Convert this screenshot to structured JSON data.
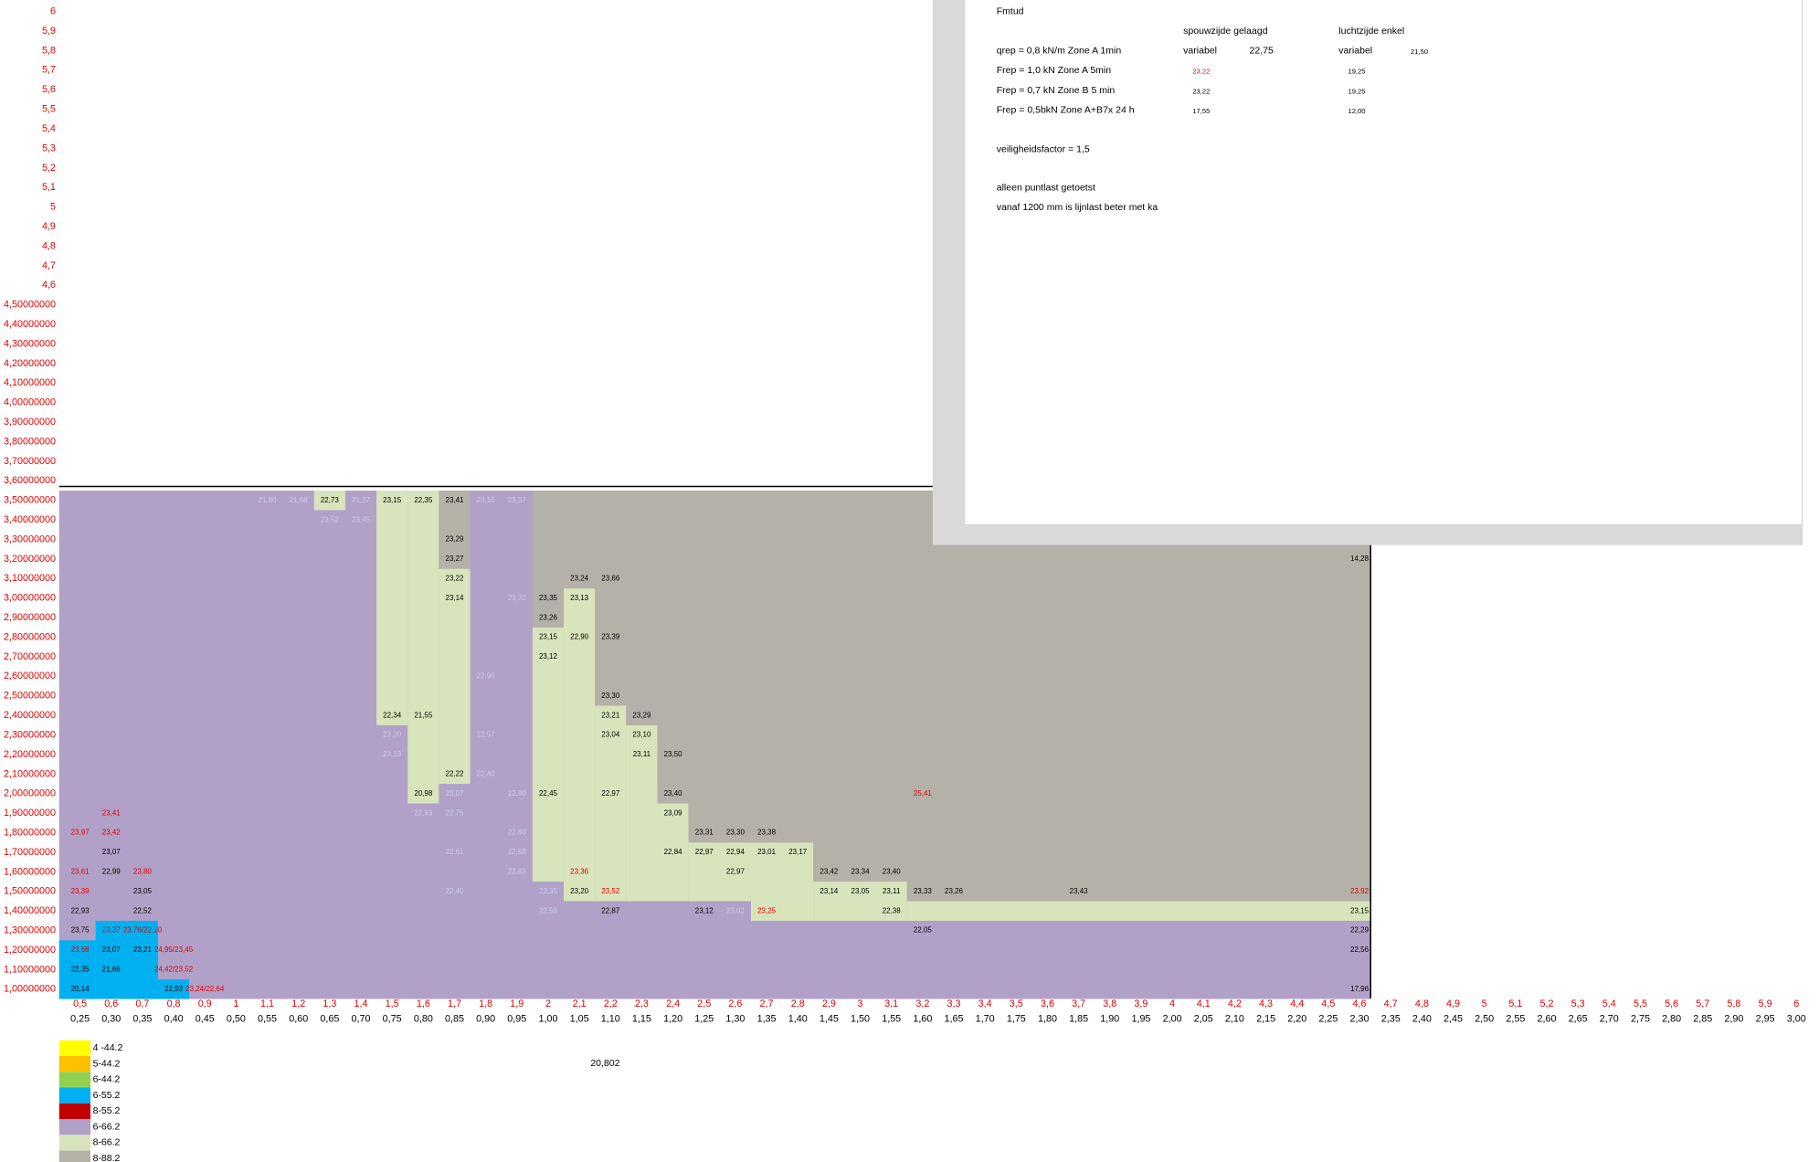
{
  "y_labels": [
    "6",
    "5,9",
    "5,8",
    "5,7",
    "5,6",
    "5,5",
    "5,4",
    "5,3",
    "5,2",
    "5,1",
    "5",
    "4,9",
    "4,8",
    "4,7",
    "4,6",
    "4,50000000",
    "4,40000000",
    "4,30000000",
    "4,20000000",
    "4,10000000",
    "4,00000000",
    "3,90000000",
    "3,80000000",
    "3,70000000",
    "3,60000000",
    "3,50000000",
    "3,40000000",
    "3,30000000",
    "3,20000000",
    "3,10000000",
    "3,00000000",
    "2,90000000",
    "2,80000000",
    "2,70000000",
    "2,60000000",
    "2,50000000",
    "2,40000000",
    "2,30000000",
    "2,20000000",
    "2,10000000",
    "2,00000000",
    "1,90000000",
    "1,80000000",
    "1,70000000",
    "1,60000000",
    "1,50000000",
    "1,40000000",
    "1,30000000",
    "1,20000000",
    "1,10000000",
    "1,00000000"
  ],
  "x_labels_top": [
    "0,5",
    "0,6",
    "0,7",
    "0,8",
    "0,9",
    "1",
    "1,1",
    "1,2",
    "1,3",
    "1,4",
    "1,5",
    "1,6",
    "1,7",
    "1,8",
    "1,9",
    "2",
    "2,1",
    "2,2",
    "2,3",
    "2,4",
    "2,5",
    "2,6",
    "2,7",
    "2,8",
    "2,9",
    "3",
    "3,1",
    "3,2",
    "3,3",
    "3,4",
    "3,5",
    "3,6",
    "3,7",
    "3,8",
    "3,9",
    "4",
    "4,1",
    "4,2",
    "4,3",
    "4,4",
    "4,5",
    "4,6",
    "4,7",
    "4,8",
    "4,9",
    "5",
    "5,1",
    "5,2",
    "5,3",
    "5,4",
    "5,5",
    "5,6",
    "5,7",
    "5,8",
    "5,9",
    "6"
  ],
  "x_labels_bottom": [
    "0,25",
    "0,30",
    "0,35",
    "0,40",
    "0,45",
    "0,50",
    "0,55",
    "0,60",
    "0,65",
    "0,70",
    "0,75",
    "0,80",
    "0,85",
    "0,90",
    "0,95",
    "1,00",
    "1,05",
    "1,10",
    "1,15",
    "1,20",
    "1,25",
    "1,30",
    "1,35",
    "1,40",
    "1,45",
    "1,50",
    "1,55",
    "1,60",
    "1,65",
    "1,70",
    "1,75",
    "1,80",
    "1,85",
    "1,90",
    "1,95",
    "2,00",
    "2,05",
    "2,10",
    "2,15",
    "2,20",
    "2,25",
    "2,30",
    "2,35",
    "2,40",
    "2,45",
    "2,50",
    "2,55",
    "2,60",
    "2,65",
    "2,70",
    "2,75",
    "2,80",
    "2,85",
    "2,90",
    "2,95",
    "3,00"
  ],
  "grid": {
    "cells": [
      {
        "x": 0.55,
        "y": 3.5,
        "text": "21,80",
        "tone": "light"
      },
      {
        "x": 0.6,
        "y": 3.5,
        "text": "21,68",
        "tone": "light"
      },
      {
        "x": 0.65,
        "y": 3.5,
        "text": "22,73",
        "tone": "black"
      },
      {
        "x": 0.7,
        "y": 3.5,
        "text": "21,37",
        "tone": "light"
      },
      {
        "x": 0.75,
        "y": 3.5,
        "text": "23,15",
        "tone": "black"
      },
      {
        "x": 0.8,
        "y": 3.5,
        "text": "22,35",
        "tone": "black"
      },
      {
        "x": 0.85,
        "y": 3.5,
        "text": "23,41",
        "tone": "black"
      },
      {
        "x": 0.9,
        "y": 3.5,
        "text": "23,16",
        "tone": "light"
      },
      {
        "x": 0.95,
        "y": 3.5,
        "text": "23,37",
        "tone": "light"
      },
      {
        "x": 0.65,
        "y": 3.4,
        "text": "23,52",
        "tone": "light"
      },
      {
        "x": 0.7,
        "y": 3.4,
        "text": "23,45",
        "tone": "light"
      },
      {
        "x": 0.85,
        "y": 3.3,
        "text": "23,29",
        "tone": "black"
      },
      {
        "x": 0.85,
        "y": 3.2,
        "text": "23,27",
        "tone": "black"
      },
      {
        "x": 2.3,
        "y": 3.2,
        "text": "14,28",
        "tone": "black"
      },
      {
        "x": 0.85,
        "y": 3.1,
        "text": "23,22",
        "tone": "black"
      },
      {
        "x": 1.05,
        "y": 3.1,
        "text": "23,24",
        "tone": "black"
      },
      {
        "x": 1.1,
        "y": 3.1,
        "text": "23,66",
        "tone": "black"
      },
      {
        "x": 0.85,
        "y": 3.0,
        "text": "23,14",
        "tone": "black"
      },
      {
        "x": 0.95,
        "y": 3.0,
        "text": "23,32",
        "tone": "light"
      },
      {
        "x": 1.0,
        "y": 3.0,
        "text": "23,35",
        "tone": "black"
      },
      {
        "x": 1.05,
        "y": 3.0,
        "text": "23,13",
        "tone": "black"
      },
      {
        "x": 1.0,
        "y": 2.9,
        "text": "23,26",
        "tone": "black"
      },
      {
        "x": 1.0,
        "y": 2.8,
        "text": "23,15",
        "tone": "black"
      },
      {
        "x": 1.05,
        "y": 2.8,
        "text": "22,90",
        "tone": "black"
      },
      {
        "x": 1.1,
        "y": 2.8,
        "text": "23,39",
        "tone": "black"
      },
      {
        "x": 1.0,
        "y": 2.7,
        "text": "23,12",
        "tone": "black"
      },
      {
        "x": 0.9,
        "y": 2.6,
        "text": "22,96",
        "tone": "light"
      },
      {
        "x": 1.1,
        "y": 2.5,
        "text": "23,30",
        "tone": "black"
      },
      {
        "x": 0.75,
        "y": 2.4,
        "text": "22,34",
        "tone": "black"
      },
      {
        "x": 0.8,
        "y": 2.4,
        "text": "21,55",
        "tone": "black"
      },
      {
        "x": 1.1,
        "y": 2.4,
        "text": "23,21",
        "tone": "black"
      },
      {
        "x": 1.15,
        "y": 2.4,
        "text": "23,29",
        "tone": "black"
      },
      {
        "x": 0.75,
        "y": 2.3,
        "text": "23,20",
        "tone": "light"
      },
      {
        "x": 0.9,
        "y": 2.3,
        "text": "22,57",
        "tone": "light"
      },
      {
        "x": 1.1,
        "y": 2.3,
        "text": "23,04",
        "tone": "black"
      },
      {
        "x": 1.15,
        "y": 2.3,
        "text": "23,10",
        "tone": "black"
      },
      {
        "x": 0.75,
        "y": 2.2,
        "text": "23,13",
        "tone": "light"
      },
      {
        "x": 1.15,
        "y": 2.2,
        "text": "23,11",
        "tone": "black"
      },
      {
        "x": 1.2,
        "y": 2.2,
        "text": "23,50",
        "tone": "black"
      },
      {
        "x": 0.85,
        "y": 2.1,
        "text": "22,22",
        "tone": "black"
      },
      {
        "x": 0.9,
        "y": 2.1,
        "text": "22,40",
        "tone": "light"
      },
      {
        "x": 0.8,
        "y": 2.0,
        "text": "20,98",
        "tone": "black"
      },
      {
        "x": 0.85,
        "y": 2.0,
        "text": "23,07",
        "tone": "light"
      },
      {
        "x": 0.95,
        "y": 2.0,
        "text": "22,90",
        "tone": "light"
      },
      {
        "x": 1.0,
        "y": 2.0,
        "text": "22,45",
        "tone": "black"
      },
      {
        "x": 1.1,
        "y": 2.0,
        "text": "22,97",
        "tone": "black"
      },
      {
        "x": 1.2,
        "y": 2.0,
        "text": "23,40",
        "tone": "black"
      },
      {
        "x": 1.6,
        "y": 2.0,
        "text": "25,41",
        "tone": "red"
      },
      {
        "x": 0.3,
        "y": 1.9,
        "text": "23,41",
        "tone": "red"
      },
      {
        "x": 0.8,
        "y": 1.9,
        "text": "22,93",
        "tone": "light"
      },
      {
        "x": 0.85,
        "y": 1.9,
        "text": "22,75",
        "tone": "light"
      },
      {
        "x": 1.2,
        "y": 1.9,
        "text": "23,09",
        "tone": "black"
      },
      {
        "x": 0.25,
        "y": 1.8,
        "text": "23,97",
        "tone": "red"
      },
      {
        "x": 0.3,
        "y": 1.8,
        "text": "23,42",
        "tone": "red"
      },
      {
        "x": 0.95,
        "y": 1.8,
        "text": "22,80",
        "tone": "light"
      },
      {
        "x": 1.25,
        "y": 1.8,
        "text": "23,31",
        "tone": "black"
      },
      {
        "x": 1.3,
        "y": 1.8,
        "text": "23,30",
        "tone": "black"
      },
      {
        "x": 1.35,
        "y": 1.8,
        "text": "23,38",
        "tone": "black"
      },
      {
        "x": 0.3,
        "y": 1.7,
        "text": "23,07",
        "tone": "black"
      },
      {
        "x": 0.85,
        "y": 1.7,
        "text": "22,61",
        "tone": "light"
      },
      {
        "x": 0.95,
        "y": 1.7,
        "text": "22,68",
        "tone": "light"
      },
      {
        "x": 1.2,
        "y": 1.7,
        "text": "22,84",
        "tone": "black"
      },
      {
        "x": 1.25,
        "y": 1.7,
        "text": "22,97",
        "tone": "black"
      },
      {
        "x": 1.3,
        "y": 1.7,
        "text": "22,94",
        "tone": "black"
      },
      {
        "x": 1.35,
        "y": 1.7,
        "text": "23,01",
        "tone": "black"
      },
      {
        "x": 1.4,
        "y": 1.7,
        "text": "23,17",
        "tone": "black"
      },
      {
        "x": 0.25,
        "y": 1.6,
        "text": "23,61",
        "tone": "red"
      },
      {
        "x": 0.3,
        "y": 1.6,
        "text": "22,99",
        "tone": "black"
      },
      {
        "x": 0.35,
        "y": 1.6,
        "text": "23,80",
        "tone": "red"
      },
      {
        "x": 0.95,
        "y": 1.6,
        "text": "22,83",
        "tone": "light"
      },
      {
        "x": 1.05,
        "y": 1.6,
        "text": "23,36",
        "tone": "red"
      },
      {
        "x": 1.3,
        "y": 1.6,
        "text": "22,97",
        "tone": "black"
      },
      {
        "x": 1.45,
        "y": 1.6,
        "text": "23,42",
        "tone": "black"
      },
      {
        "x": 1.5,
        "y": 1.6,
        "text": "23,34",
        "tone": "black"
      },
      {
        "x": 1.55,
        "y": 1.6,
        "text": "23,40",
        "tone": "black"
      },
      {
        "x": 0.25,
        "y": 1.5,
        "text": "23,39",
        "tone": "red"
      },
      {
        "x": 0.35,
        "y": 1.5,
        "text": "23,05",
        "tone": "black"
      },
      {
        "x": 0.85,
        "y": 1.5,
        "text": "22,40",
        "tone": "light"
      },
      {
        "x": 1.0,
        "y": 1.5,
        "text": "23,35",
        "tone": "light"
      },
      {
        "x": 1.05,
        "y": 1.5,
        "text": "23,20",
        "tone": "black"
      },
      {
        "x": 1.1,
        "y": 1.5,
        "text": "23,52",
        "tone": "red"
      },
      {
        "x": 1.45,
        "y": 1.5,
        "text": "23,14",
        "tone": "black"
      },
      {
        "x": 1.5,
        "y": 1.5,
        "text": "23,05",
        "tone": "black"
      },
      {
        "x": 1.55,
        "y": 1.5,
        "text": "23,11",
        "tone": "black"
      },
      {
        "x": 1.6,
        "y": 1.5,
        "text": "23,33",
        "tone": "black"
      },
      {
        "x": 1.65,
        "y": 1.5,
        "text": "23,26",
        "tone": "black"
      },
      {
        "x": 1.85,
        "y": 1.5,
        "text": "23,43",
        "tone": "black"
      },
      {
        "x": 2.3,
        "y": 1.5,
        "text": "23,92",
        "tone": "red"
      },
      {
        "x": 0.25,
        "y": 1.4,
        "text": "22,93",
        "tone": "black"
      },
      {
        "x": 0.35,
        "y": 1.4,
        "text": "22,52",
        "tone": "black"
      },
      {
        "x": 1.0,
        "y": 1.4,
        "text": "22,59",
        "tone": "light"
      },
      {
        "x": 1.1,
        "y": 1.4,
        "text": "22,87",
        "tone": "black"
      },
      {
        "x": 1.25,
        "y": 1.4,
        "text": "23,12",
        "tone": "black"
      },
      {
        "x": 1.3,
        "y": 1.4,
        "text": "23,02",
        "tone": "light"
      },
      {
        "x": 1.35,
        "y": 1.4,
        "text": "23,25",
        "tone": "red"
      },
      {
        "x": 1.55,
        "y": 1.4,
        "text": "22,38",
        "tone": "black"
      },
      {
        "x": 2.3,
        "y": 1.4,
        "text": "23,15",
        "tone": "black"
      },
      {
        "x": 0.25,
        "y": 1.3,
        "text": "23,75",
        "tone": "black"
      },
      {
        "x": 0.3,
        "y": 1.3,
        "text": "23,37",
        "tone": "red"
      },
      {
        "x": 0.35,
        "y": 1.3,
        "text": "23,76/22,10",
        "tone": "red"
      },
      {
        "x": 1.6,
        "y": 1.3,
        "text": "22,05",
        "tone": "black"
      },
      {
        "x": 2.3,
        "y": 1.3,
        "text": "22,29",
        "tone": "black"
      },
      {
        "x": 0.25,
        "y": 1.2,
        "text": "23,68",
        "tone": "red"
      },
      {
        "x": 0.3,
        "y": 1.2,
        "text": "23,07",
        "tone": "black"
      },
      {
        "x": 0.35,
        "y": 1.2,
        "text": "23,21",
        "tone": "black"
      },
      {
        "x": 0.4,
        "y": 1.2,
        "text": "24,95/23,45",
        "tone": "red"
      },
      {
        "x": 2.3,
        "y": 1.2,
        "text": "22,56",
        "tone": "black"
      },
      {
        "x": 0.25,
        "y": 1.1,
        "text": "22,35",
        "tone": "black"
      },
      {
        "x": 0.3,
        "y": 1.1,
        "text": "21,66",
        "tone": "black"
      },
      {
        "x": 0.4,
        "y": 1.1,
        "text": "24,42/23,52",
        "tone": "red"
      },
      {
        "x": 0.25,
        "y": 1.0,
        "text": "20,14",
        "tone": "black"
      },
      {
        "x": 0.4,
        "y": 1.0,
        "text": "22,93",
        "tone": "black"
      },
      {
        "x": 0.45,
        "y": 1.0,
        "text": "23,24/22,64",
        "tone": "red"
      },
      {
        "x": 2.3,
        "y": 1.0,
        "text": "17,96",
        "tone": "black"
      }
    ]
  },
  "legend": [
    {
      "label": "4 -44.2",
      "color": "#ffff00"
    },
    {
      "label": "5-44.2",
      "color": "#ffc000"
    },
    {
      "label": "6-44.2",
      "color": "#92d050"
    },
    {
      "label": "6-55.2",
      "color": "#00b0f0"
    },
    {
      "label": "8-55.2",
      "color": "#c00000"
    },
    {
      "label": "6-66.2",
      "color": "#b1a0c7"
    },
    {
      "label": "8-66.2",
      "color": "#d8e4bc"
    },
    {
      "label": "8-88.2",
      "color": "#b4b1a8"
    }
  ],
  "note": "20,802",
  "panel": {
    "title": "Fmtud",
    "headers": [
      "spouwzijde gelaagd",
      "luchtzijde enkel"
    ],
    "rows": [
      {
        "label": "qrep = 0,8 kN/m Zone A 1min",
        "a_kind": "variabel",
        "a": "22,75",
        "b_kind": "variabel",
        "b": "21,50"
      },
      {
        "label": "Frep = 1,0 kN Zone A 5min",
        "a": "23,22",
        "b": "19,25"
      },
      {
        "label": "Frep = 0,7 kN Zone B 5 min",
        "a": "23,22",
        "b": "19,25"
      },
      {
        "label": "Frep = 0,5bkN Zone A+B7x 24 h",
        "a": "17,55",
        "b": "12,00"
      }
    ],
    "notes": [
      "veiligheidsfactor = 1,5",
      "alleen puntlast getoetst",
      "vanaf 1200 mm is lijnlast beter met ka"
    ]
  }
}
